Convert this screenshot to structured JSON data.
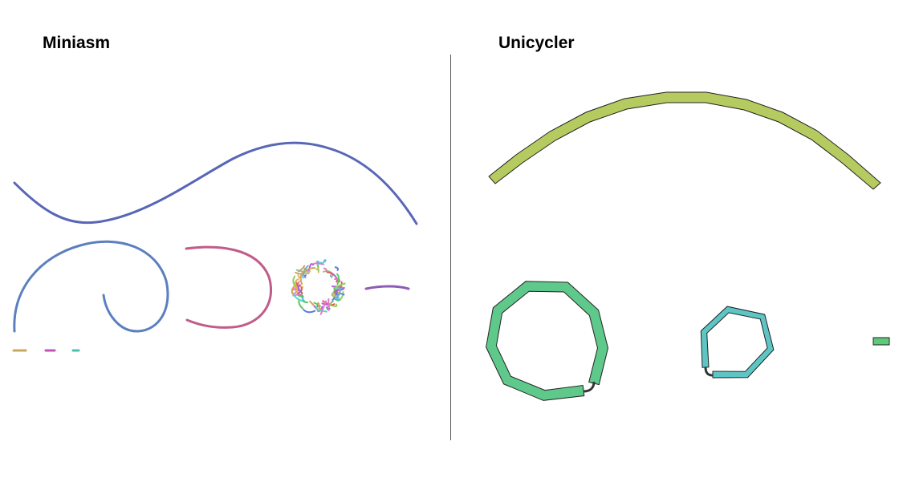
{
  "panels": {
    "left": {
      "title": "Miniasm"
    },
    "right": {
      "title": "Unicycler"
    }
  },
  "colors": {
    "miniasm_long_contig": "#5866b6",
    "miniasm_spiral_contig": "#5b7fbf",
    "miniasm_c_contig": "#c05c8a",
    "miniasm_short_contig": "#8e5cb6",
    "miniasm_dash_1": "#c9a85a",
    "miniasm_dash_2": "#c64fbe",
    "miniasm_dash_3": "#4bbfb0",
    "unicycler_chromosome": "#b5cb60",
    "unicycler_plasmid_large": "#5ec98a",
    "unicycler_plasmid_small": "#5dc6c4",
    "unicycler_tiny_contig": "#5ec97b",
    "edge_link": "#333333",
    "outline": "#222222"
  }
}
